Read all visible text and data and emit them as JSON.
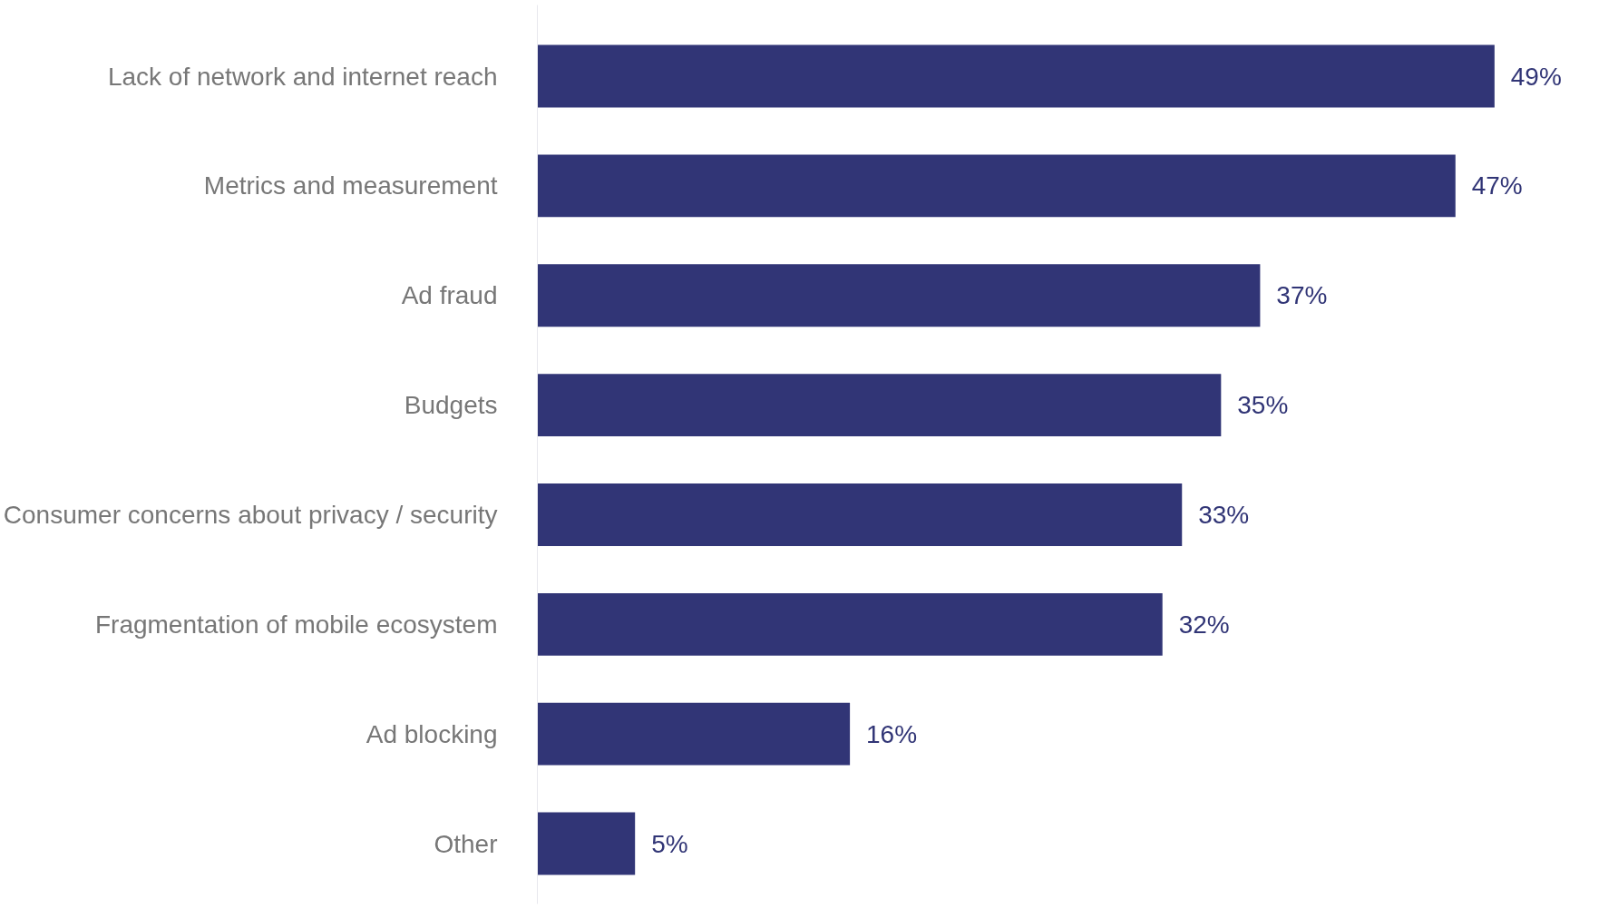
{
  "chart_data": {
    "type": "bar",
    "orientation": "horizontal",
    "categories": [
      "Lack of network and internet reach",
      "Metrics and measurement",
      "Ad fraud",
      "Budgets",
      "Consumer concerns about privacy / security",
      "Fragmentation of mobile ecosystem",
      "Ad blocking",
      "Other"
    ],
    "values": [
      49,
      47,
      37,
      35,
      33,
      32,
      16,
      5
    ],
    "value_labels": [
      "49%",
      "47%",
      "37%",
      "35%",
      "33%",
      "32%",
      "16%",
      "5%"
    ],
    "color": "#313576",
    "grid": false
  }
}
